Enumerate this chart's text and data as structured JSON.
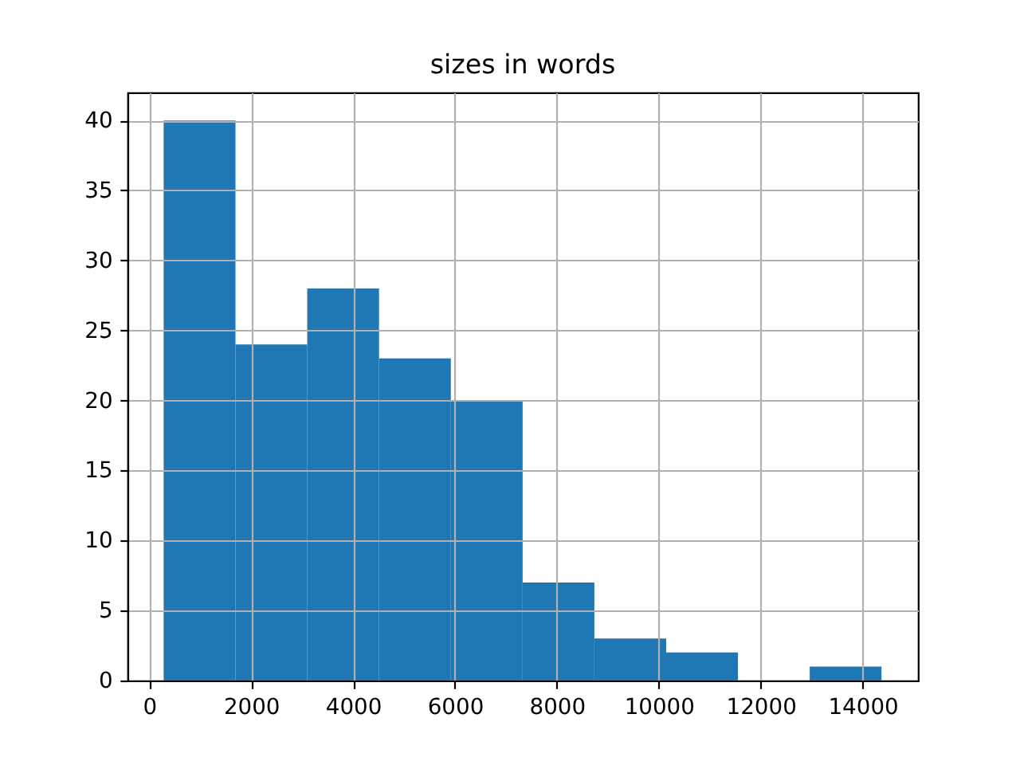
{
  "chart_data": {
    "type": "histogram",
    "title": "sizes in words",
    "bins": [
      283,
      1692,
      3100,
      4509,
      5918,
      7327,
      8735,
      10144,
      11553,
      12961,
      14370
    ],
    "values": [
      40,
      24,
      28,
      23,
      20,
      7,
      3,
      2,
      0,
      1
    ],
    "color": "#1f77b4",
    "xlim": [
      -427,
      15086
    ],
    "xticks": [
      0,
      2000,
      4000,
      6000,
      8000,
      10000,
      12000,
      14000
    ],
    "ylim": [
      0,
      42
    ],
    "yticks": [
      0,
      5,
      10,
      15,
      20,
      25,
      30,
      35,
      40
    ],
    "grid": true
  }
}
